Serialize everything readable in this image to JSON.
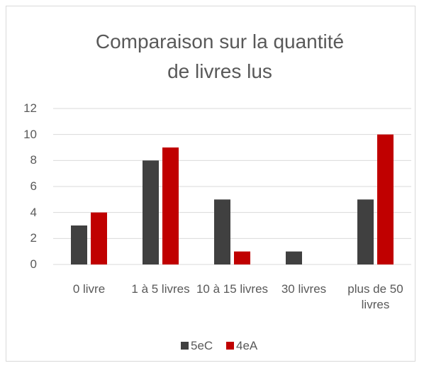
{
  "chart_data": {
    "type": "bar",
    "title": "Comparaison sur la quantité de livres lus",
    "categories": [
      "0 livre",
      "1 à 5 livres",
      "10 à 15 livres",
      "30 livres",
      "plus de 50 livres"
    ],
    "series": [
      {
        "name": "5eC",
        "color": "#404040",
        "values": [
          3,
          8,
          5,
          1,
          5
        ]
      },
      {
        "name": "4eA",
        "color": "#c00000",
        "values": [
          4,
          9,
          1,
          0,
          10
        ]
      }
    ],
    "ylim": [
      0,
      12
    ],
    "yticks": [
      0,
      2,
      4,
      6,
      8,
      10,
      12
    ],
    "grid": true,
    "legend": "bottom"
  }
}
